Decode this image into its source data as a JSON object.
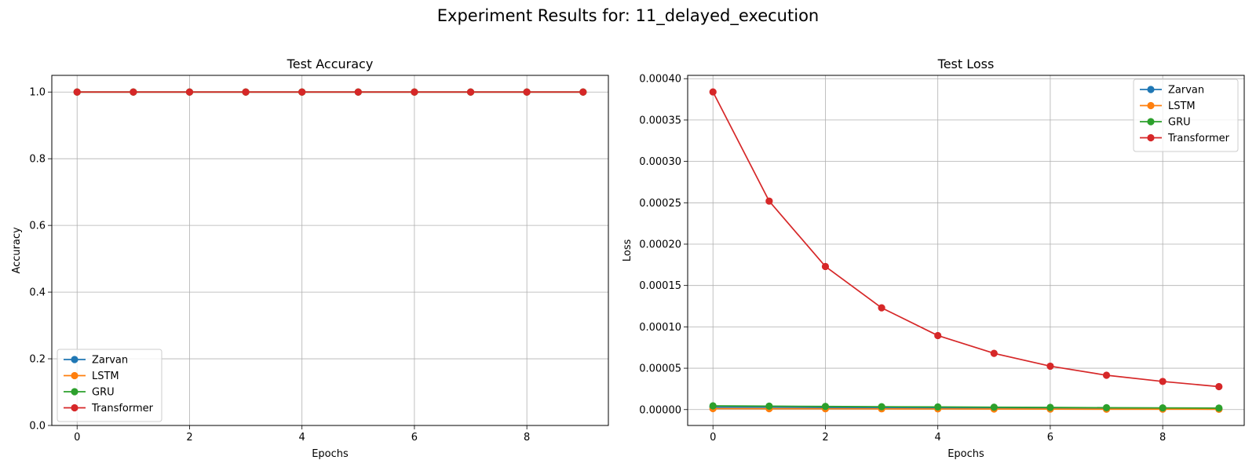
{
  "suptitle": "Experiment Results for: 11_delayed_execution",
  "colors": {
    "Zarvan": "#1f77b4",
    "LSTM": "#ff7f0e",
    "GRU": "#2ca02c",
    "Transformer": "#d62728"
  },
  "chart_data": [
    {
      "type": "line",
      "title": "Test Accuracy",
      "xlabel": "Epochs",
      "ylabel": "Accuracy",
      "x": [
        0,
        1,
        2,
        3,
        4,
        5,
        6,
        7,
        8,
        9
      ],
      "xlim": [
        -0.45,
        9.45
      ],
      "ylim": [
        0,
        1.05
      ],
      "xticks": [
        0,
        2,
        4,
        6,
        8
      ],
      "yticks": [
        0.0,
        0.2,
        0.4,
        0.6,
        0.8,
        1.0
      ],
      "ytick_labels": [
        "0.0",
        "0.2",
        "0.4",
        "0.6",
        "0.8",
        "1.0"
      ],
      "grid": true,
      "legend_loc": "lower-left",
      "series": [
        {
          "name": "Zarvan",
          "values": [
            1,
            1,
            1,
            1,
            1,
            1,
            1,
            1,
            1,
            1
          ]
        },
        {
          "name": "LSTM",
          "values": [
            1,
            1,
            1,
            1,
            1,
            1,
            1,
            1,
            1,
            1
          ]
        },
        {
          "name": "GRU",
          "values": [
            1,
            1,
            1,
            1,
            1,
            1,
            1,
            1,
            1,
            1
          ]
        },
        {
          "name": "Transformer",
          "values": [
            1,
            1,
            1,
            1,
            1,
            1,
            1,
            1,
            1,
            1
          ]
        }
      ]
    },
    {
      "type": "line",
      "title": "Test Loss",
      "xlabel": "Epochs",
      "ylabel": "Loss",
      "x": [
        0,
        1,
        2,
        3,
        4,
        5,
        6,
        7,
        8,
        9
      ],
      "xlim": [
        -0.45,
        9.45
      ],
      "ylim": [
        -1.92e-05,
        0.000404
      ],
      "xticks": [
        0,
        2,
        4,
        6,
        8
      ],
      "yticks": [
        0,
        5e-05,
        0.0001,
        0.00015,
        0.0002,
        0.00025,
        0.0003,
        0.00035,
        0.0004
      ],
      "ytick_labels": [
        "0.00000",
        "0.00005",
        "0.00010",
        "0.00015",
        "0.00020",
        "0.00025",
        "0.00030",
        "0.00035",
        "0.00040"
      ],
      "grid": true,
      "legend_loc": "upper-right",
      "series": [
        {
          "name": "Zarvan",
          "values": [
            3e-06,
            2.8e-06,
            2.5e-06,
            2.2e-06,
            2e-06,
            1.7e-06,
            1.5e-06,
            1.2e-06,
            1e-06,
            8e-07
          ]
        },
        {
          "name": "LSTM",
          "values": [
            1.2e-06,
            1.1e-06,
            1e-06,
            9e-07,
            8e-07,
            7e-07,
            6e-07,
            5e-07,
            5e-07,
            4e-07
          ]
        },
        {
          "name": "GRU",
          "values": [
            4.5e-06,
            4.2e-06,
            3.8e-06,
            3.5e-06,
            3.2e-06,
            2.9e-06,
            2.6e-06,
            2.3e-06,
            2e-06,
            1.8e-06
          ]
        },
        {
          "name": "Transformer",
          "values": [
            0.000384,
            0.000252,
            0.000173,
            0.000123,
            8.95e-05,
            6.8e-05,
            5.25e-05,
            4.15e-05,
            3.4e-05,
            2.78e-05
          ]
        }
      ]
    }
  ]
}
